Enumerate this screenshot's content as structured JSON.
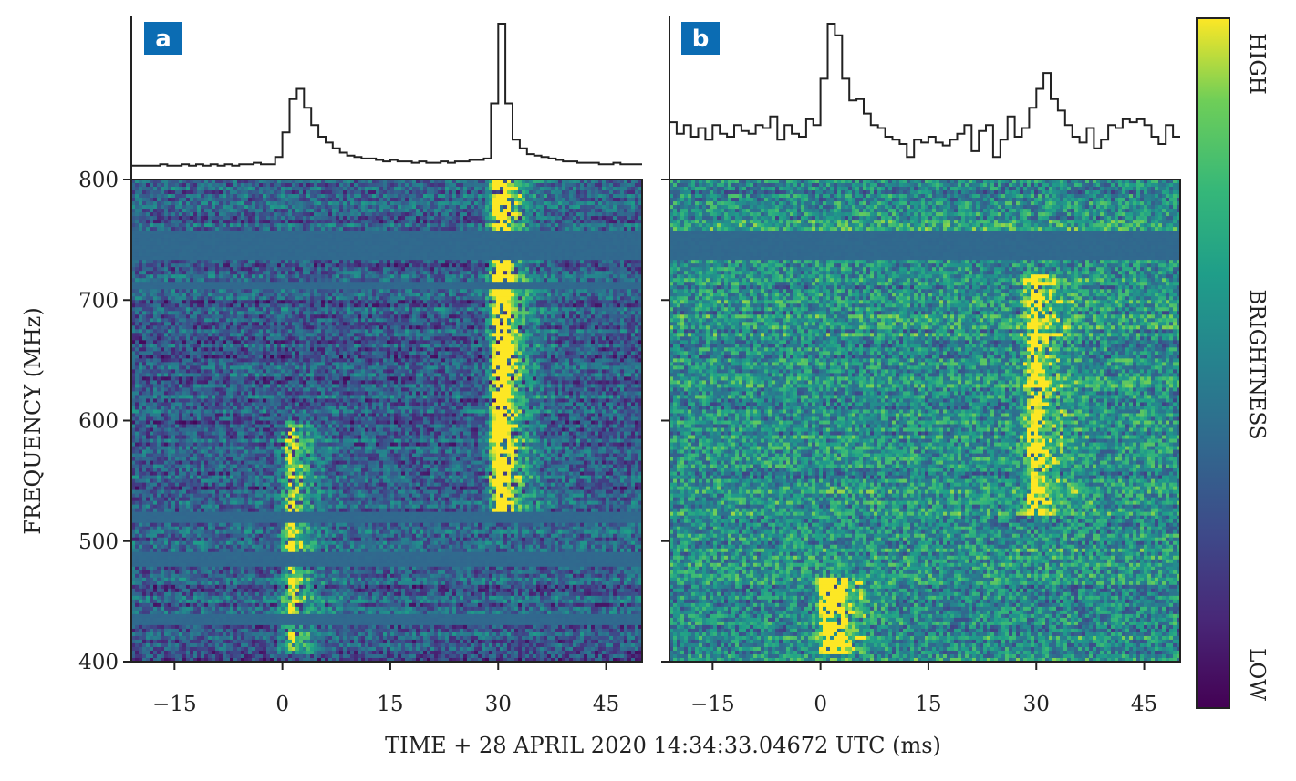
{
  "chart_data": {
    "type": "heatmap",
    "xlabel": "TIME + 28 APRIL 2020 14:34:33.04672 UTC (ms)",
    "ylabel": "FREQUENCY (MHz)",
    "xlim": [
      -21,
      50
    ],
    "ylim": [
      400,
      800
    ],
    "xticks": [
      -15,
      0,
      15,
      30,
      45
    ],
    "xtick_labels": [
      "−15",
      "0",
      "15",
      "30",
      "45"
    ],
    "yticks": [
      400,
      500,
      600,
      700,
      800
    ],
    "ytick_labels": [
      "400",
      "500",
      "600",
      "700",
      "800"
    ],
    "colorbar": {
      "label": "BRIGHTNESS",
      "high_label": "HIGH",
      "low_label": "LOW",
      "colormap": "viridis",
      "colors": [
        "#440154",
        "#3b528b",
        "#21918c",
        "#5ec962",
        "#fde725"
      ]
    },
    "panels": [
      {
        "label": "a",
        "label_color": "#0b6cb3",
        "masked_bands_mhz": [
          [
            732,
            758
          ],
          [
            708,
            714
          ],
          [
            515,
            523
          ],
          [
            478,
            492
          ],
          [
            430,
            438
          ]
        ],
        "bursts": [
          {
            "peak_ms": 1.5,
            "relative_peak_flux": 0.55,
            "band_mhz": [
              405,
              600
            ]
          },
          {
            "peak_ms": 30.5,
            "relative_peak_flux": 1.0,
            "band_mhz": [
              520,
              800
            ]
          }
        ],
        "profile_ms": [
          -21,
          -20,
          -19,
          -18,
          -17,
          -16,
          -15,
          -14,
          -13,
          -12,
          -11,
          -10,
          -9,
          -8,
          -7,
          -6,
          -5,
          -4,
          -3,
          -2,
          -1,
          0,
          1,
          2,
          3,
          4,
          5,
          6,
          7,
          8,
          9,
          10,
          11,
          12,
          13,
          14,
          15,
          16,
          17,
          18,
          19,
          20,
          21,
          22,
          23,
          24,
          25,
          26,
          27,
          28,
          29,
          30,
          31,
          32,
          33,
          34,
          35,
          36,
          37,
          38,
          39,
          40,
          41,
          42,
          43,
          44,
          45,
          46,
          47,
          48,
          49
        ],
        "profile_flux": [
          0.02,
          0.02,
          0.02,
          0.02,
          0.03,
          0.02,
          0.02,
          0.03,
          0.02,
          0.03,
          0.02,
          0.03,
          0.02,
          0.03,
          0.02,
          0.03,
          0.03,
          0.04,
          0.03,
          0.03,
          0.08,
          0.25,
          0.48,
          0.55,
          0.42,
          0.3,
          0.22,
          0.18,
          0.14,
          0.11,
          0.09,
          0.08,
          0.07,
          0.07,
          0.06,
          0.05,
          0.06,
          0.05,
          0.05,
          0.04,
          0.05,
          0.04,
          0.04,
          0.05,
          0.04,
          0.05,
          0.05,
          0.06,
          0.06,
          0.07,
          0.45,
          1.0,
          0.45,
          0.2,
          0.14,
          0.1,
          0.09,
          0.08,
          0.07,
          0.06,
          0.05,
          0.05,
          0.04,
          0.04,
          0.04,
          0.03,
          0.03,
          0.04,
          0.03,
          0.03,
          0.03
        ]
      },
      {
        "label": "b",
        "label_color": "#0b6cb3",
        "masked_bands_mhz": [
          [
            732,
            758
          ]
        ],
        "bursts": [
          {
            "peak_ms": 1.5,
            "relative_peak_flux": 1.0,
            "band_mhz": [
              405,
              470
            ]
          },
          {
            "peak_ms": 30.0,
            "relative_peak_flux": 0.55,
            "band_mhz": [
              520,
              720
            ]
          }
        ],
        "profile_ms": [
          -21,
          -20,
          -19,
          -18,
          -17,
          -16,
          -15,
          -14,
          -13,
          -12,
          -11,
          -10,
          -9,
          -8,
          -7,
          -6,
          -5,
          -4,
          -3,
          -2,
          -1,
          0,
          1,
          2,
          3,
          4,
          5,
          6,
          7,
          8,
          9,
          10,
          11,
          12,
          13,
          14,
          15,
          16,
          17,
          18,
          19,
          20,
          21,
          22,
          23,
          24,
          25,
          26,
          27,
          28,
          29,
          30,
          31,
          32,
          33,
          34,
          35,
          36,
          37,
          38,
          39,
          40,
          41,
          42,
          43,
          44,
          45,
          46,
          47,
          48,
          49
        ],
        "profile_flux": [
          0.32,
          0.24,
          0.3,
          0.22,
          0.28,
          0.2,
          0.3,
          0.24,
          0.22,
          0.3,
          0.26,
          0.24,
          0.3,
          0.28,
          0.36,
          0.2,
          0.3,
          0.24,
          0.22,
          0.34,
          0.3,
          0.62,
          1.0,
          0.92,
          0.62,
          0.47,
          0.48,
          0.38,
          0.3,
          0.28,
          0.22,
          0.2,
          0.17,
          0.08,
          0.2,
          0.18,
          0.22,
          0.18,
          0.16,
          0.2,
          0.24,
          0.3,
          0.12,
          0.26,
          0.3,
          0.08,
          0.2,
          0.36,
          0.22,
          0.28,
          0.42,
          0.55,
          0.66,
          0.48,
          0.4,
          0.3,
          0.22,
          0.18,
          0.28,
          0.14,
          0.2,
          0.3,
          0.28,
          0.34,
          0.32,
          0.34,
          0.3,
          0.22,
          0.17,
          0.3,
          0.22
        ]
      }
    ]
  }
}
